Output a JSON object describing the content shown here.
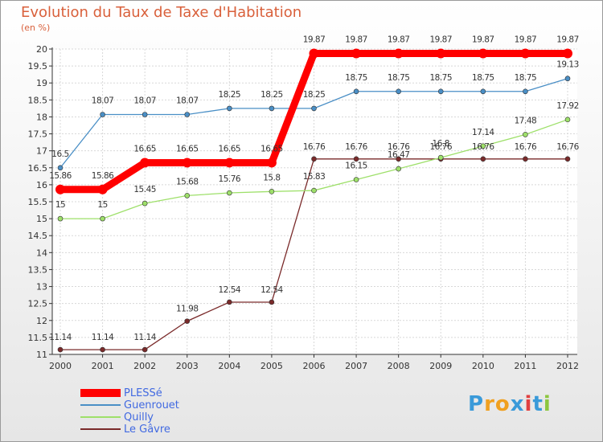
{
  "chart_data": {
    "type": "line",
    "title": "Evolution du Taux de Taxe d'Habitation",
    "subtitle": "(en %)",
    "xlabel": "",
    "ylabel": "",
    "ylim": [
      11,
      20
    ],
    "categories": [
      "2000",
      "2001",
      "2002",
      "2003",
      "2004",
      "2005",
      "2006",
      "2007",
      "2008",
      "2009",
      "2010",
      "2011",
      "2012"
    ],
    "yticks": [
      "11",
      "11.5",
      "12",
      "12.5",
      "13",
      "13.5",
      "14",
      "14.5",
      "15",
      "15.5",
      "16",
      "16.5",
      "17",
      "17.5",
      "18",
      "18.5",
      "19",
      "19.5",
      "20"
    ],
    "series": [
      {
        "name": "PLESSé",
        "color": "#ff0000",
        "values": [
          15.86,
          15.86,
          16.65,
          16.65,
          16.65,
          16.65,
          19.87,
          19.87,
          19.87,
          19.87,
          19.87,
          19.87,
          19.87
        ]
      },
      {
        "name": "Guenrouet",
        "color": "#4a8fc6",
        "values": [
          16.5,
          18.07,
          18.07,
          18.07,
          18.25,
          18.25,
          18.25,
          18.75,
          18.75,
          18.75,
          18.75,
          18.75,
          19.13
        ]
      },
      {
        "name": "Quilly",
        "color": "#9ee06a",
        "values": [
          15,
          15,
          15.45,
          15.68,
          15.76,
          15.8,
          15.83,
          16.15,
          16.47,
          16.8,
          17.14,
          17.48,
          17.92
        ]
      },
      {
        "name": "Le Gâvre",
        "color": "#7a2a2a",
        "values": [
          11.14,
          11.14,
          11.14,
          11.98,
          12.54,
          12.54,
          16.76,
          16.76,
          16.76,
          16.76,
          16.76,
          16.76,
          16.76
        ]
      }
    ],
    "legend_position": "bottom-left"
  },
  "brand": {
    "letters": [
      "P",
      "r",
      "o",
      "x",
      "i",
      "t",
      "i"
    ],
    "colors": [
      "#3a9ad9",
      "#f0a020",
      "#f0a020",
      "#3a9ad9",
      "#e04040",
      "#3a9ad9",
      "#8cc63f"
    ]
  }
}
